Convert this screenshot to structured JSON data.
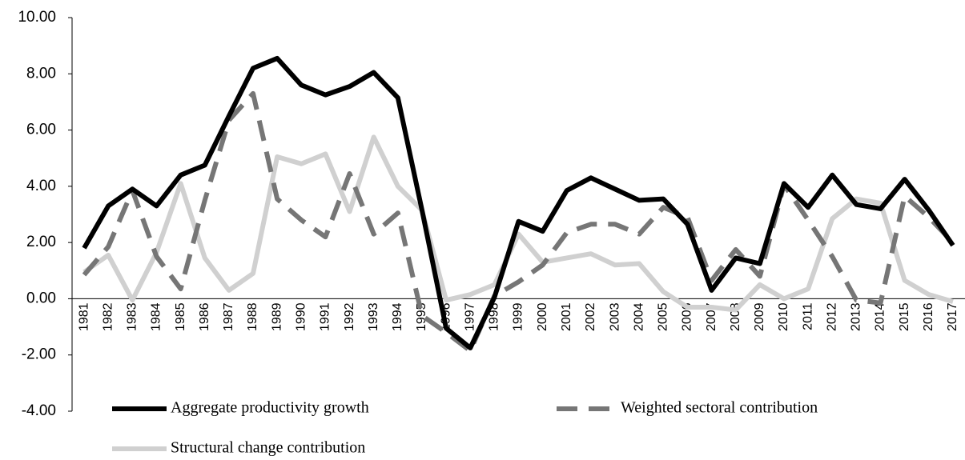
{
  "chart_data": {
    "type": "line",
    "categories": [
      "1981",
      "1982",
      "1983",
      "1984",
      "1985",
      "1986",
      "1987",
      "1988",
      "1989",
      "1990",
      "1991",
      "1992",
      "1993",
      "1994",
      "1995",
      "1996",
      "1997",
      "1998",
      "1999",
      "2000",
      "2001",
      "2002",
      "2003",
      "2004",
      "2005",
      "2006",
      "2007",
      "2008",
      "2009",
      "2010",
      "2011",
      "2012",
      "2013",
      "2014",
      "2015",
      "2016",
      "2017"
    ],
    "series": [
      {
        "name": "Aggregate productivity growth",
        "color": "#000000",
        "dash": false,
        "values": [
          1.8,
          3.3,
          3.9,
          3.3,
          4.4,
          4.75,
          6.5,
          8.2,
          8.55,
          7.6,
          7.25,
          7.55,
          8.05,
          7.15,
          3.15,
          -1.05,
          -1.75,
          0.05,
          2.75,
          2.4,
          3.85,
          4.3,
          3.9,
          3.5,
          3.55,
          2.65,
          0.3,
          1.45,
          1.25,
          4.1,
          3.25,
          4.4,
          3.35,
          3.2,
          4.25,
          3.15,
          1.9
        ]
      },
      {
        "name": "Weighted sectoral contribution",
        "color": "#767676",
        "dash": true,
        "values": [
          0.85,
          1.85,
          3.85,
          1.5,
          0.35,
          3.5,
          6.35,
          7.3,
          3.55,
          2.8,
          2.2,
          4.45,
          2.3,
          3.05,
          -0.6,
          -1.2,
          -1.85,
          0.1,
          0.6,
          1.2,
          2.35,
          2.65,
          2.65,
          2.3,
          3.25,
          2.9,
          0.65,
          1.75,
          0.8,
          4.05,
          2.8,
          1.5,
          -0.05,
          -0.15,
          3.65,
          2.9,
          2.0
        ]
      },
      {
        "name": "Structural change contribution",
        "color": "#d0d0d0",
        "dash": false,
        "values": [
          0.95,
          1.55,
          -0.05,
          1.65,
          4.1,
          1.45,
          0.3,
          0.9,
          5.05,
          4.8,
          5.15,
          3.1,
          5.75,
          4.0,
          3.15,
          -0.05,
          0.15,
          0.5,
          2.3,
          1.3,
          1.45,
          1.6,
          1.2,
          1.25,
          0.25,
          -0.3,
          -0.3,
          -0.4,
          0.5,
          0.0,
          0.35,
          2.85,
          3.55,
          3.4,
          0.65,
          0.15,
          -0.1
        ]
      }
    ],
    "ylim": [
      -4,
      10
    ],
    "yticks": [
      {
        "value": -4,
        "label": "-4.00"
      },
      {
        "value": -2,
        "label": "-2.00"
      },
      {
        "value": 0,
        "label": "0.00"
      },
      {
        "value": 2,
        "label": "2.00"
      },
      {
        "value": 4,
        "label": "4.00"
      },
      {
        "value": 6,
        "label": "6.00"
      },
      {
        "value": 8,
        "label": "8.00"
      },
      {
        "value": 10,
        "label": "10.00"
      }
    ]
  }
}
